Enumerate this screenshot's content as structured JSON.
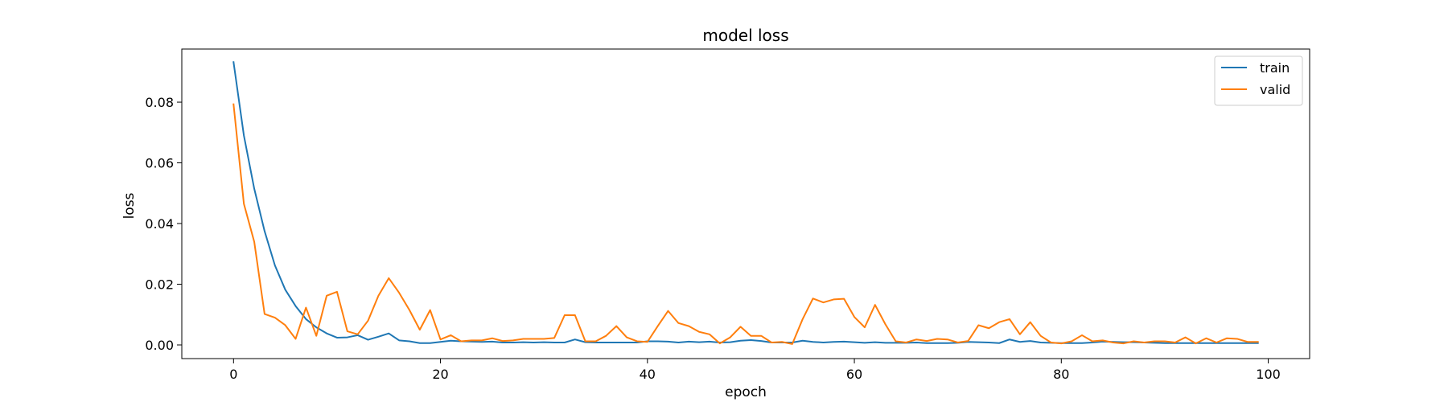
{
  "chart_data": {
    "type": "line",
    "title": "model loss",
    "xlabel": "epoch",
    "ylabel": "loss",
    "xlim": [
      -5,
      104
    ],
    "ylim": [
      -0.0045,
      0.0975
    ],
    "xticks": [
      0,
      20,
      40,
      60,
      80,
      100
    ],
    "yticks": [
      0.0,
      0.02,
      0.04,
      0.06,
      0.08
    ],
    "xtick_labels": [
      "0",
      "20",
      "40",
      "60",
      "80",
      "100"
    ],
    "ytick_labels": [
      "0.00",
      "0.02",
      "0.04",
      "0.06",
      "0.08"
    ],
    "grid": false,
    "legend": "top-right",
    "x": [
      0,
      1,
      2,
      3,
      4,
      5,
      6,
      7,
      8,
      9,
      10,
      11,
      12,
      13,
      14,
      15,
      16,
      17,
      18,
      19,
      20,
      21,
      22,
      23,
      24,
      25,
      26,
      27,
      28,
      29,
      30,
      31,
      32,
      33,
      34,
      35,
      36,
      37,
      38,
      39,
      40,
      41,
      42,
      43,
      44,
      45,
      46,
      47,
      48,
      49,
      50,
      51,
      52,
      53,
      54,
      55,
      56,
      57,
      58,
      59,
      60,
      61,
      62,
      63,
      64,
      65,
      66,
      67,
      68,
      69,
      70,
      71,
      72,
      73,
      74,
      75,
      76,
      77,
      78,
      79,
      80,
      81,
      82,
      83,
      84,
      85,
      86,
      87,
      88,
      89,
      90,
      91,
      92,
      93,
      94,
      95,
      96,
      97,
      98,
      99
    ],
    "series": [
      {
        "name": "train",
        "color": "#1f77b4",
        "values": [
          0.0932,
          0.069,
          0.0515,
          0.0375,
          0.0262,
          0.0182,
          0.0128,
          0.0085,
          0.0058,
          0.0038,
          0.0024,
          0.0025,
          0.0032,
          0.0017,
          0.0027,
          0.0038,
          0.0015,
          0.0012,
          0.0006,
          0.0006,
          0.001,
          0.0014,
          0.0012,
          0.0011,
          0.001,
          0.0011,
          0.0008,
          0.0008,
          0.0009,
          0.0008,
          0.0009,
          0.0008,
          0.0008,
          0.0018,
          0.0009,
          0.0008,
          0.0008,
          0.0008,
          0.0008,
          0.0008,
          0.0012,
          0.0012,
          0.0011,
          0.0008,
          0.0011,
          0.0009,
          0.0011,
          0.0008,
          0.0009,
          0.0014,
          0.0016,
          0.0013,
          0.0008,
          0.0008,
          0.0008,
          0.0014,
          0.001,
          0.0008,
          0.001,
          0.0011,
          0.0009,
          0.0007,
          0.0009,
          0.0007,
          0.0007,
          0.0007,
          0.0008,
          0.0006,
          0.0006,
          0.0006,
          0.0007,
          0.001,
          0.0009,
          0.0008,
          0.0006,
          0.0018,
          0.001,
          0.0013,
          0.0008,
          0.0007,
          0.0006,
          0.0006,
          0.0006,
          0.0008,
          0.0011,
          0.001,
          0.0009,
          0.0009,
          0.0008,
          0.0007,
          0.0006,
          0.0006,
          0.0006,
          0.0006,
          0.0006,
          0.0006,
          0.0006,
          0.0006,
          0.0006,
          0.0006
        ]
      },
      {
        "name": "valid",
        "color": "#ff7f0e",
        "values": [
          0.0793,
          0.0465,
          0.034,
          0.0102,
          0.009,
          0.0065,
          0.002,
          0.0123,
          0.003,
          0.0162,
          0.0175,
          0.0045,
          0.0035,
          0.008,
          0.0162,
          0.022,
          0.0172,
          0.0115,
          0.005,
          0.0115,
          0.0018,
          0.0032,
          0.0012,
          0.0015,
          0.0015,
          0.0022,
          0.0013,
          0.0015,
          0.002,
          0.002,
          0.002,
          0.0023,
          0.0098,
          0.0098,
          0.0012,
          0.0012,
          0.003,
          0.0062,
          0.0025,
          0.0012,
          0.001,
          0.0062,
          0.0112,
          0.0072,
          0.0062,
          0.0043,
          0.0035,
          0.0005,
          0.0025,
          0.006,
          0.003,
          0.003,
          0.0008,
          0.001,
          0.0003,
          0.0085,
          0.0153,
          0.014,
          0.015,
          0.0152,
          0.0092,
          0.0058,
          0.0132,
          0.0068,
          0.0012,
          0.0008,
          0.0018,
          0.0013,
          0.002,
          0.0018,
          0.0008,
          0.0013,
          0.0065,
          0.0055,
          0.0075,
          0.0085,
          0.0035,
          0.0075,
          0.003,
          0.0008,
          0.0005,
          0.0012,
          0.0032,
          0.0012,
          0.0015,
          0.0008,
          0.0005,
          0.0012,
          0.0008,
          0.0012,
          0.0012,
          0.0008,
          0.0025,
          0.0005,
          0.0022,
          0.0008,
          0.0022,
          0.002,
          0.001,
          0.001
        ]
      }
    ]
  }
}
